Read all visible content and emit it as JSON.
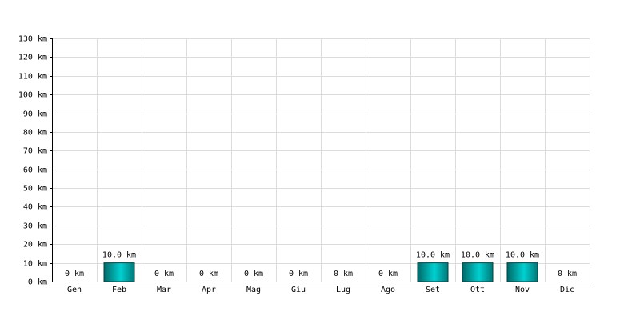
{
  "chart_data": {
    "type": "bar",
    "categories": [
      "Gen",
      "Feb",
      "Mar",
      "Apr",
      "Mag",
      "Giu",
      "Lug",
      "Ago",
      "Set",
      "Ott",
      "Nov",
      "Dic"
    ],
    "values": [
      0,
      10,
      0,
      0,
      0,
      0,
      0,
      0,
      10,
      10,
      10,
      0
    ],
    "value_labels": [
      "0 km",
      "10.0 km",
      "0 km",
      "0 km",
      "0 km",
      "0 km",
      "0 km",
      "0 km",
      "10.0 km",
      "10.0 km",
      "10.0 km",
      "0 km"
    ],
    "color": "#00d0d0",
    "ylim": [
      0,
      130
    ],
    "yticks": [
      {
        "value": 0,
        "label": "0 km"
      },
      {
        "value": 10,
        "label": "10 km"
      },
      {
        "value": 20,
        "label": "20 km"
      },
      {
        "value": 30,
        "label": "30 km"
      },
      {
        "value": 40,
        "label": "40 km"
      },
      {
        "value": 50,
        "label": "50 km"
      },
      {
        "value": 60,
        "label": "60 km"
      },
      {
        "value": 70,
        "label": "70 km"
      },
      {
        "value": 80,
        "label": "80 km"
      },
      {
        "value": 90,
        "label": "90 km"
      },
      {
        "value": 100,
        "label": "100 km"
      },
      {
        "value": 110,
        "label": "110 km"
      },
      {
        "value": 120,
        "label": "120 km"
      },
      {
        "value": 130,
        "label": "130 km"
      }
    ],
    "grid": true
  }
}
